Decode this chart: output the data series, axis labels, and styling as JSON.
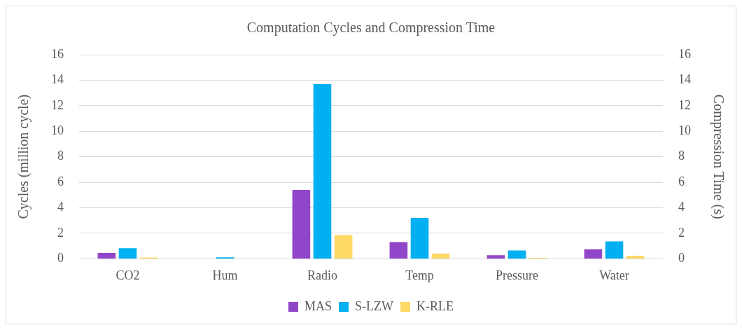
{
  "chart_data": {
    "type": "bar",
    "title": "Computation Cycles and Compression Time",
    "ylabel": "Cycles (million cycle)",
    "y2label": "Compression Time (s)",
    "categories": [
      "CO2",
      "Hum",
      "Radio",
      "Temp",
      "Pressure",
      "Water"
    ],
    "series": [
      {
        "name": "MAS",
        "color": "#9146c9",
        "values": [
          0.46,
          null,
          5.4,
          1.31,
          0.28,
          0.75
        ]
      },
      {
        "name": "S-LZW",
        "color": "#00b0f0",
        "values": [
          0.83,
          0.12,
          13.7,
          3.2,
          0.65,
          1.37
        ]
      },
      {
        "name": "K-RLE",
        "color": "#ffd966",
        "values": [
          0.1,
          null,
          1.86,
          0.4,
          0.08,
          0.24
        ]
      }
    ],
    "ylim": [
      0,
      16
    ],
    "yticks": [
      0,
      2,
      4,
      6,
      8,
      10,
      12,
      14,
      16
    ],
    "y2lim": [
      0,
      16
    ],
    "y2ticks": [
      0,
      2,
      4,
      6,
      8,
      10,
      12,
      14,
      16
    ],
    "grid": "y",
    "legend": "bottom"
  }
}
